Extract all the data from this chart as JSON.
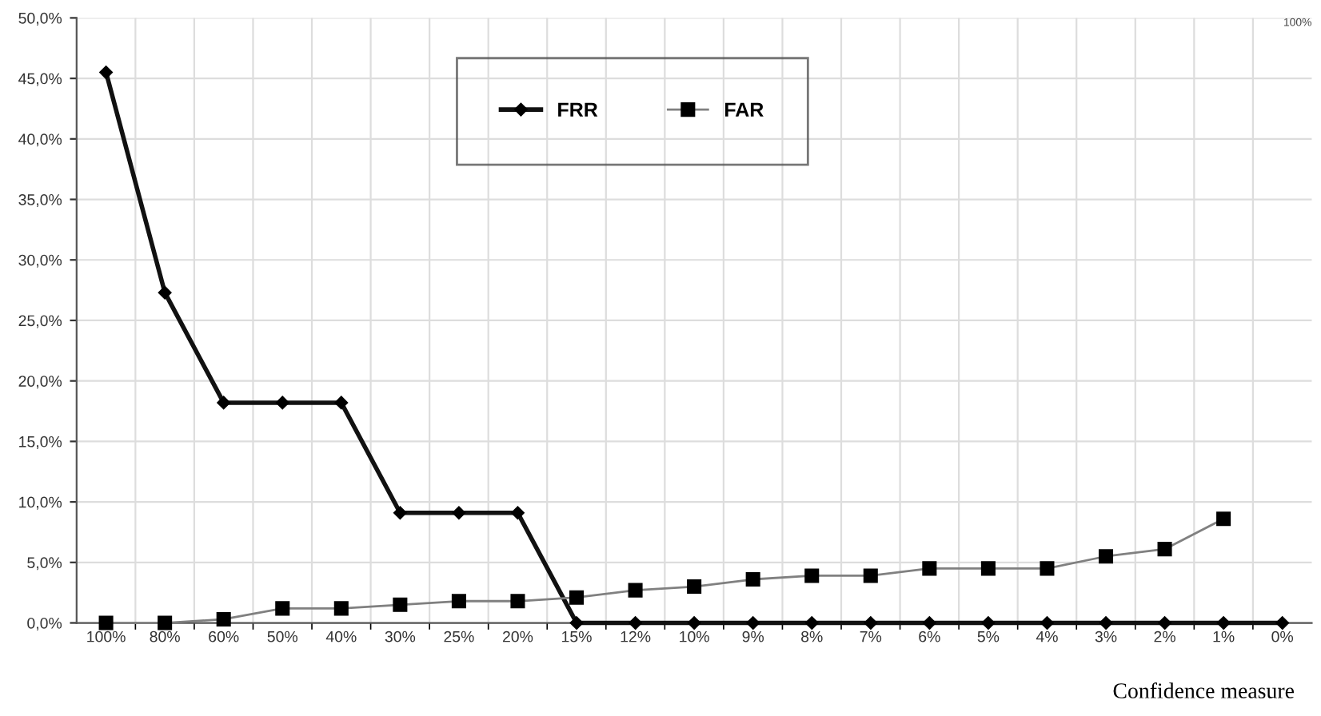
{
  "chart_data": {
    "type": "line",
    "xlabel": "Confidence measure",
    "categories": [
      "100%",
      "80%",
      "60%",
      "50%",
      "40%",
      "30%",
      "25%",
      "20%",
      "15%",
      "12%",
      "10%",
      "9%",
      "8%",
      "7%",
      "6%",
      "5%",
      "4%",
      "3%",
      "2%",
      "1%",
      "0%"
    ],
    "series": [
      {
        "name": "FRR",
        "color": "#111111",
        "marker": "diamond",
        "values": [
          45.5,
          27.3,
          18.2,
          18.2,
          18.2,
          9.1,
          9.1,
          9.1,
          0,
          0,
          0,
          0,
          0,
          0,
          0,
          0,
          0,
          0,
          0,
          0,
          0
        ]
      },
      {
        "name": "FAR",
        "color": "#808080",
        "marker": "square",
        "values": [
          0,
          0,
          0.3,
          1.2,
          1.2,
          1.5,
          1.8,
          1.8,
          2.1,
          2.7,
          3.0,
          3.6,
          3.9,
          3.9,
          4.5,
          4.5,
          4.5,
          5.5,
          6.1,
          8.6,
          null
        ]
      }
    ],
    "ylim": [
      0,
      50
    ],
    "yticks": [
      {
        "value": 0,
        "label": "0,0%"
      },
      {
        "value": 5,
        "label": "5,0%"
      },
      {
        "value": 10,
        "label": "10,0%"
      },
      {
        "value": 15,
        "label": "15,0%"
      },
      {
        "value": 20,
        "label": "20,0%"
      },
      {
        "value": 25,
        "label": "25,0%"
      },
      {
        "value": 30,
        "label": "30,0%"
      },
      {
        "value": 35,
        "label": "35,0%"
      },
      {
        "value": 40,
        "label": "40,0%"
      },
      {
        "value": 45,
        "label": "45,0%"
      },
      {
        "value": 50,
        "label": "50,0%"
      }
    ],
    "annotations": [
      "100%"
    ],
    "grid": true,
    "legend": "top",
    "line_style": "solid"
  }
}
